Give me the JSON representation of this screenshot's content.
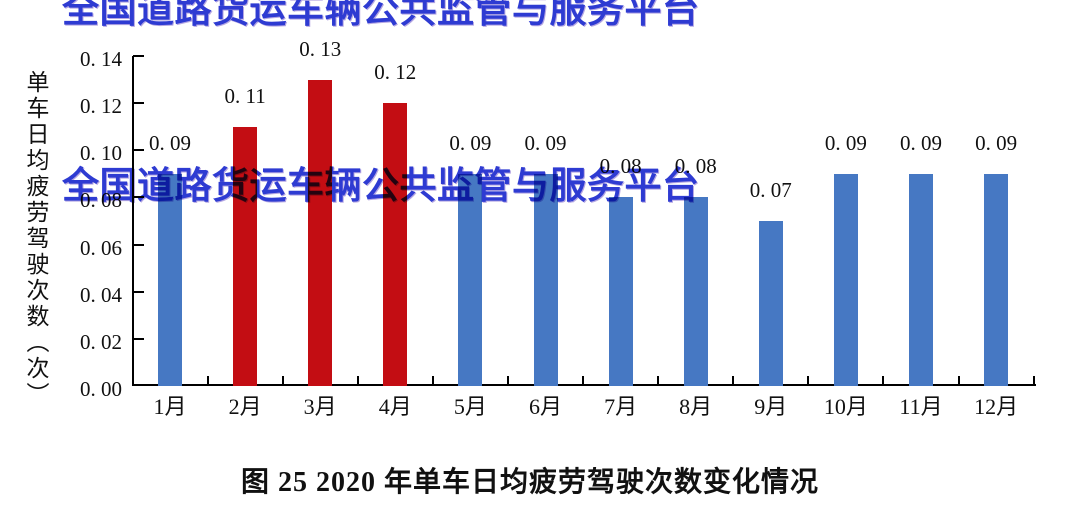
{
  "watermark": {
    "text": "全国道路货运车辆公共监管与服务平台",
    "color": "#2e3bd2"
  },
  "chart_data": {
    "type": "bar",
    "title": "图 25 2020 年单车日均疲劳驾驶次数变化情况",
    "ylabel": "单车日均疲劳驾驶次数（次）",
    "xlabel": "",
    "categories": [
      "1月",
      "2月",
      "3月",
      "4月",
      "5月",
      "6月",
      "7月",
      "8月",
      "9月",
      "10月",
      "11月",
      "12月"
    ],
    "values": [
      0.09,
      0.11,
      0.13,
      0.12,
      0.09,
      0.09,
      0.08,
      0.08,
      0.07,
      0.09,
      0.09,
      0.09
    ],
    "value_labels": [
      "0. 09",
      "0. 11",
      "0. 13",
      "0. 12",
      "0. 09",
      "0. 09",
      "0. 08",
      "0. 08",
      "0. 07",
      "0. 09",
      "0. 09",
      "0. 09"
    ],
    "yticks": [
      0.0,
      0.02,
      0.04,
      0.06,
      0.08,
      0.1,
      0.12,
      0.14
    ],
    "ytick_labels": [
      "0. 00",
      "0. 02",
      "0. 04",
      "0. 06",
      "0. 08",
      "0. 10",
      "0. 12",
      "0. 14"
    ],
    "ylim": [
      0,
      0.14
    ],
    "grid": false,
    "legend": null,
    "colors": {
      "default_bar": "#4678c3",
      "highlight_bar": "#c30d13",
      "highlight_indices": [
        1,
        2,
        3
      ],
      "axis": "#000000",
      "text": "#111111"
    }
  }
}
